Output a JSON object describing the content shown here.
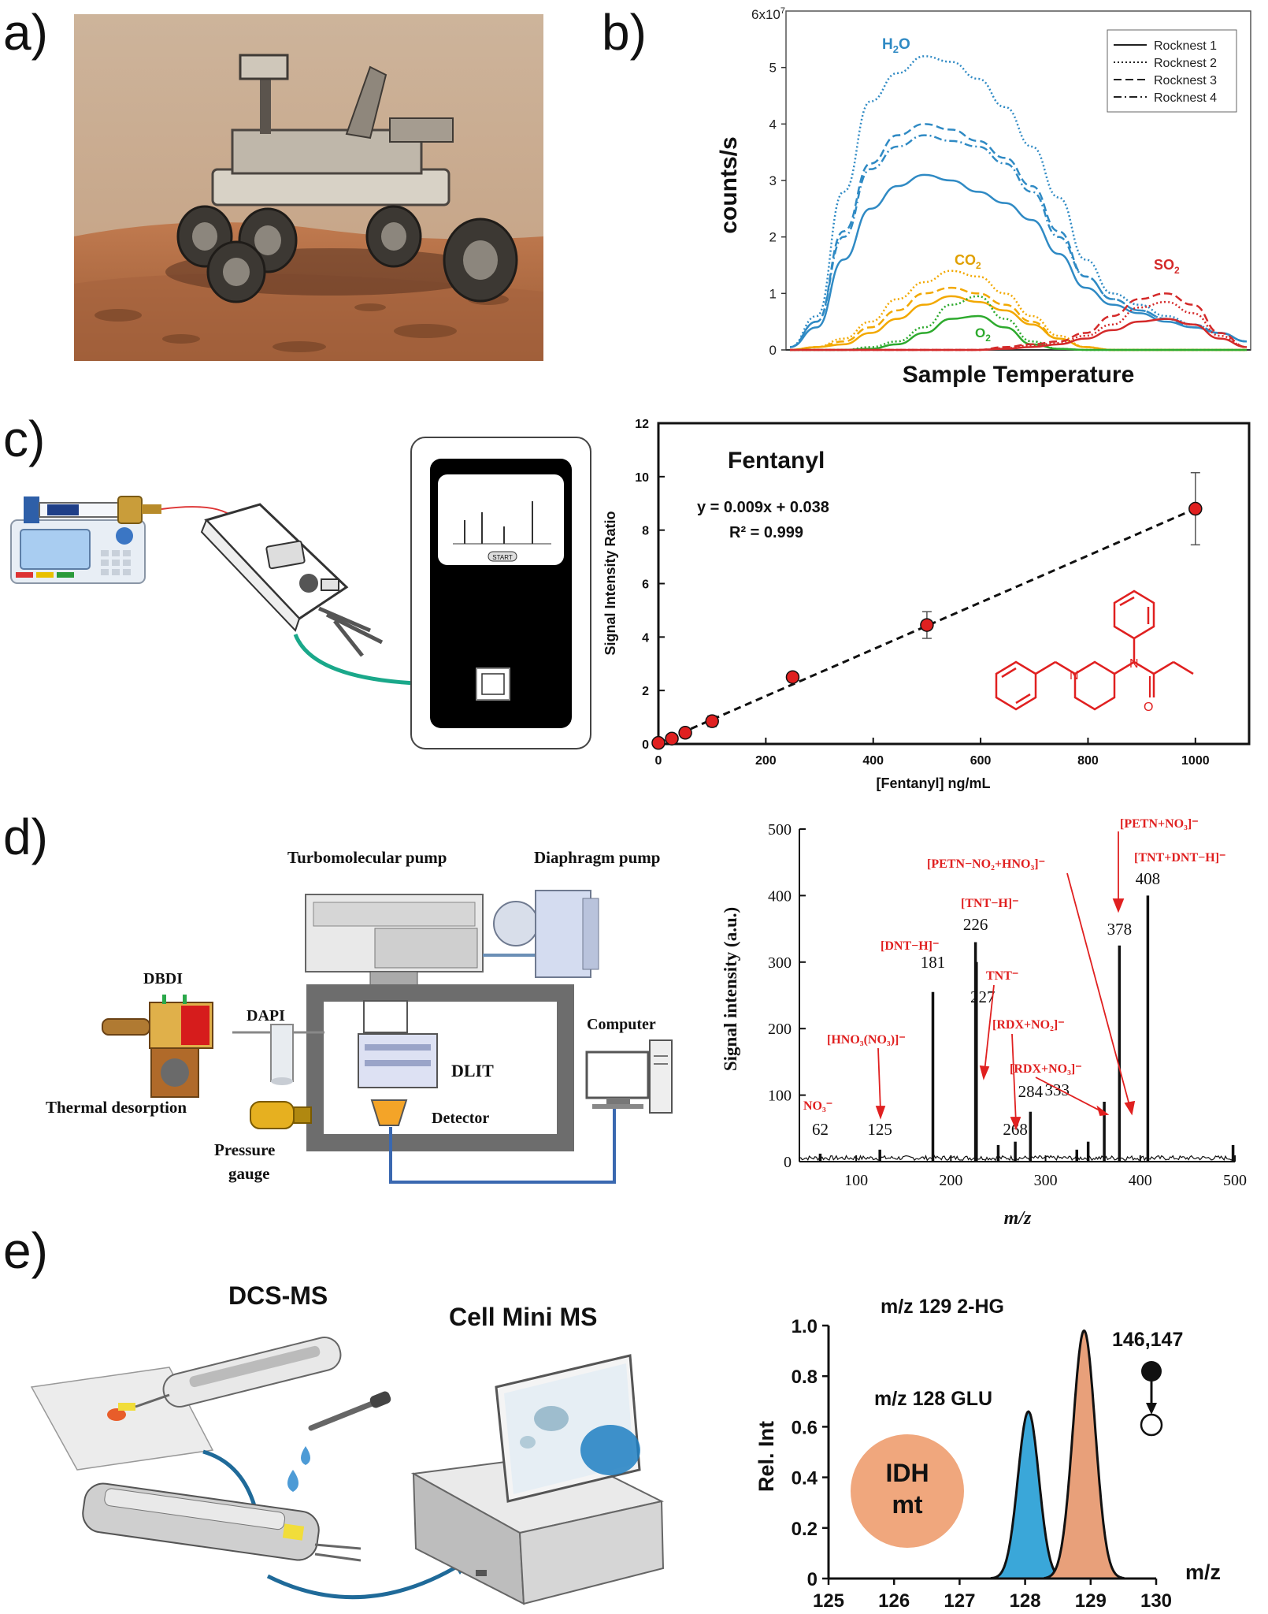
{
  "panel_labels": [
    "a)",
    "b)",
    "c)",
    "d)",
    "e)"
  ],
  "panel_a": {
    "icon": "mars-rover-photo"
  },
  "panel_c": {
    "device_screen_button": "START",
    "icons": [
      "syringe-pump-icon",
      "handheld-ion-source-icon",
      "portable-ms-device-icon"
    ]
  },
  "panel_d": {
    "schematic_labels": {
      "turbo": "Turbomolecular pump",
      "diaphragm": "Diaphragm pump",
      "dbdi": "DBDI",
      "dapi": "DAPI",
      "dlit": "DLIT",
      "computer": "Computer",
      "detector": "Detector",
      "thermal": "Thermal desorption",
      "pressure1": "Pressure",
      "pressure2": "gauge"
    }
  },
  "panel_e": {
    "dcs_ms": "DCS-MS",
    "cell_mini_ms": "Cell Mini MS",
    "idh_line1": "IDH",
    "idh_line2": "mt",
    "pathway_label": "146,147",
    "peak_label_129": "m/z 129 2-HG",
    "peak_label_128": "m/z 128 GLU",
    "colors": {
      "glu": "#3aa7d9",
      "hg": "#e8a07a",
      "idh": "#f0a77d"
    }
  },
  "chart_data": [
    {
      "id": "b",
      "type": "line",
      "title": "",
      "xlabel": "Sample Temperature",
      "ylabel": "counts/s",
      "y_multiplier_label": "6x10",
      "y_multiplier_exp": "7",
      "ylim": [
        0,
        6
      ],
      "yticks": [
        "0",
        "1",
        "2",
        "3",
        "4",
        "5"
      ],
      "legend": [
        "Rocknest 1",
        "Rocknest 2",
        "Rocknest 3",
        "Rocknest 4"
      ],
      "legend_position": "top-right",
      "annotations": {
        "h2o": "H",
        "h2o_sub": "2",
        "h2o_end": "O",
        "co2": "CO",
        "co2_sub": "2",
        "o2": "O",
        "o2_sub": "2",
        "so2": "SO",
        "so2_sub": "2"
      },
      "colors": {
        "h2o": "#2f8ac4",
        "co2": "#f2a800",
        "o2": "#2eaa2e",
        "so2": "#d42a2a"
      },
      "series": [
        {
          "gas": "H2O",
          "rock": 2,
          "values": [
            0.05,
            0.6,
            2.8,
            4.4,
            4.9,
            5.2,
            5.1,
            4.8,
            4.3,
            3.6,
            2.7,
            1.6,
            1.0,
            0.8,
            0.6,
            0.45,
            0.3,
            0.15
          ]
        },
        {
          "gas": "H2O",
          "rock": 3,
          "values": [
            0.05,
            0.5,
            2.1,
            3.3,
            3.8,
            4.0,
            3.9,
            3.7,
            3.4,
            2.9,
            2.1,
            1.3,
            0.9,
            0.7,
            0.55,
            0.45,
            0.3,
            0.15
          ]
        },
        {
          "gas": "H2O",
          "rock": 4,
          "values": [
            0.05,
            0.5,
            2.0,
            3.2,
            3.6,
            3.8,
            3.7,
            3.6,
            3.3,
            2.8,
            2.0,
            1.3,
            0.9,
            0.7,
            0.55,
            0.4,
            0.3,
            0.15
          ]
        },
        {
          "gas": "H2O",
          "rock": 1,
          "values": [
            0.05,
            0.4,
            1.6,
            2.5,
            2.9,
            3.1,
            3.0,
            2.8,
            2.6,
            2.3,
            1.7,
            1.1,
            0.8,
            0.65,
            0.5,
            0.4,
            0.3,
            0.15
          ]
        },
        {
          "gas": "CO2",
          "rock": 2,
          "values": [
            0,
            0.05,
            0.2,
            0.5,
            0.9,
            1.2,
            1.4,
            1.3,
            1.0,
            0.6,
            0.25,
            0.05,
            0,
            0,
            0,
            0,
            0,
            0
          ]
        },
        {
          "gas": "CO2",
          "rock": 3,
          "values": [
            0,
            0.05,
            0.15,
            0.4,
            0.7,
            1.0,
            1.1,
            1.0,
            0.8,
            0.5,
            0.2,
            0.05,
            0,
            0,
            0,
            0,
            0,
            0
          ]
        },
        {
          "gas": "CO2",
          "rock": 1,
          "values": [
            0,
            0.05,
            0.1,
            0.3,
            0.55,
            0.8,
            0.95,
            0.85,
            0.7,
            0.45,
            0.2,
            0.05,
            0,
            0,
            0,
            0,
            0,
            0
          ]
        },
        {
          "gas": "O2",
          "rock": 2,
          "values": [
            0,
            0,
            0,
            0.05,
            0.15,
            0.4,
            0.8,
            0.95,
            0.55,
            0.15,
            0.02,
            0,
            0,
            0,
            0,
            0,
            0,
            0
          ]
        },
        {
          "gas": "O2",
          "rock": 1,
          "values": [
            0,
            0,
            0,
            0.02,
            0.1,
            0.3,
            0.55,
            0.6,
            0.4,
            0.1,
            0.02,
            0,
            0,
            0,
            0,
            0,
            0,
            0
          ]
        },
        {
          "gas": "SO2",
          "rock": 3,
          "values": [
            0,
            0,
            0,
            0,
            0,
            0,
            0,
            0,
            0.05,
            0.1,
            0.15,
            0.3,
            0.6,
            0.9,
            1.0,
            0.8,
            0.3,
            0.05
          ]
        },
        {
          "gas": "SO2",
          "rock": 2,
          "values": [
            0,
            0,
            0,
            0,
            0,
            0,
            0,
            0,
            0.03,
            0.08,
            0.12,
            0.25,
            0.45,
            0.75,
            0.85,
            0.65,
            0.25,
            0.05
          ]
        },
        {
          "gas": "SO2",
          "rock": 1,
          "values": [
            0,
            0,
            0,
            0,
            0,
            0,
            0,
            0,
            0.02,
            0.05,
            0.1,
            0.2,
            0.35,
            0.5,
            0.55,
            0.45,
            0.2,
            0.05
          ]
        }
      ]
    },
    {
      "id": "c",
      "type": "scatter",
      "title": "Fentanyl",
      "xlabel": "[Fentanyl] ng/mL",
      "ylabel": "Signal Intensity Ratio",
      "xlim": [
        0,
        1100
      ],
      "ylim": [
        0,
        12
      ],
      "xticks": [
        0,
        200,
        400,
        600,
        800,
        1000
      ],
      "yticks": [
        0,
        2,
        4,
        6,
        8,
        10,
        12
      ],
      "equation": "y = 0.009x + 0.038",
      "r2": "R² = 0.999",
      "fit": {
        "slope": 0.009,
        "intercept": 0.038
      },
      "points": [
        {
          "x": 0,
          "y": 0.04,
          "err": 0
        },
        {
          "x": 25,
          "y": 0.2,
          "err": 0.05
        },
        {
          "x": 50,
          "y": 0.42,
          "err": 0.05
        },
        {
          "x": 100,
          "y": 0.85,
          "err": 0.2
        },
        {
          "x": 250,
          "y": 2.5,
          "err": 0.15
        },
        {
          "x": 500,
          "y": 4.45,
          "err": 0.5
        },
        {
          "x": 1000,
          "y": 8.8,
          "err": 1.35
        }
      ],
      "colors": {
        "point": "#e02020",
        "molecule": "#e02020"
      }
    },
    {
      "id": "d",
      "type": "bar",
      "xlabel": "m/z",
      "ylabel": "Signal intensity (a.u.)",
      "xlim": [
        40,
        500
      ],
      "ylim": [
        0,
        500
      ],
      "xticks": [
        100,
        200,
        300,
        400,
        500
      ],
      "yticks": [
        0,
        100,
        200,
        300,
        400,
        500
      ],
      "peaks": [
        {
          "mz": 62,
          "intensity": 12
        },
        {
          "mz": 125,
          "intensity": 18
        },
        {
          "mz": 181,
          "intensity": 255
        },
        {
          "mz": 226,
          "intensity": 330
        },
        {
          "mz": 227,
          "intensity": 300
        },
        {
          "mz": 250,
          "intensity": 25
        },
        {
          "mz": 268,
          "intensity": 30
        },
        {
          "mz": 284,
          "intensity": 75
        },
        {
          "mz": 333,
          "intensity": 18
        },
        {
          "mz": 345,
          "intensity": 30
        },
        {
          "mz": 362,
          "intensity": 90
        },
        {
          "mz": 378,
          "intensity": 325
        },
        {
          "mz": 408,
          "intensity": 400
        },
        {
          "mz": 498,
          "intensity": 25
        }
      ],
      "peak_labels": [
        {
          "mz": 62,
          "text": "62"
        },
        {
          "mz": 125,
          "text": "125"
        },
        {
          "mz": 181,
          "text": "181"
        },
        {
          "mz": 226,
          "text": "226"
        },
        {
          "mz": 227,
          "text": "227"
        },
        {
          "mz": 268,
          "text": "268"
        },
        {
          "mz": 284,
          "text": "284"
        },
        {
          "mz": 333,
          "text": "333"
        },
        {
          "mz": 378,
          "text": "378"
        },
        {
          "mz": 408,
          "text": "408"
        }
      ],
      "ion_labels": {
        "no3": "NO₃⁻",
        "hno3no3": "[HNO₃(NO₃)]⁻",
        "dnt": "[DNT−H]⁻",
        "tnt_h": "[TNT−H]⁻",
        "tnt": "TNT⁻",
        "rdx_no2": "[RDX+NO₂]⁻",
        "rdx_no3": "[RDX+NO₃]⁻",
        "petn_no2": "[PETN−NO₂+HNO₃]⁻",
        "petn_no3": "[PETN+NO₃]⁻",
        "tnt_dnt": "[TNT+DNT−H]⁻"
      },
      "colors": {
        "ion_label": "#e02020"
      }
    },
    {
      "id": "e",
      "type": "area",
      "xlabel": "m/z",
      "ylabel": "Rel. Int",
      "xlim": [
        125,
        130
      ],
      "ylim": [
        0,
        1.0
      ],
      "xticks": [
        125,
        126,
        127,
        128,
        129,
        130
      ],
      "yticks": [
        "0",
        "0.2",
        "0.4",
        "0.6",
        "0.8",
        "1.0"
      ],
      "series": [
        {
          "center": 128.05,
          "height": 0.66,
          "sigma": 0.16
        },
        {
          "center": 128.9,
          "height": 0.98,
          "sigma": 0.17
        }
      ]
    }
  ]
}
